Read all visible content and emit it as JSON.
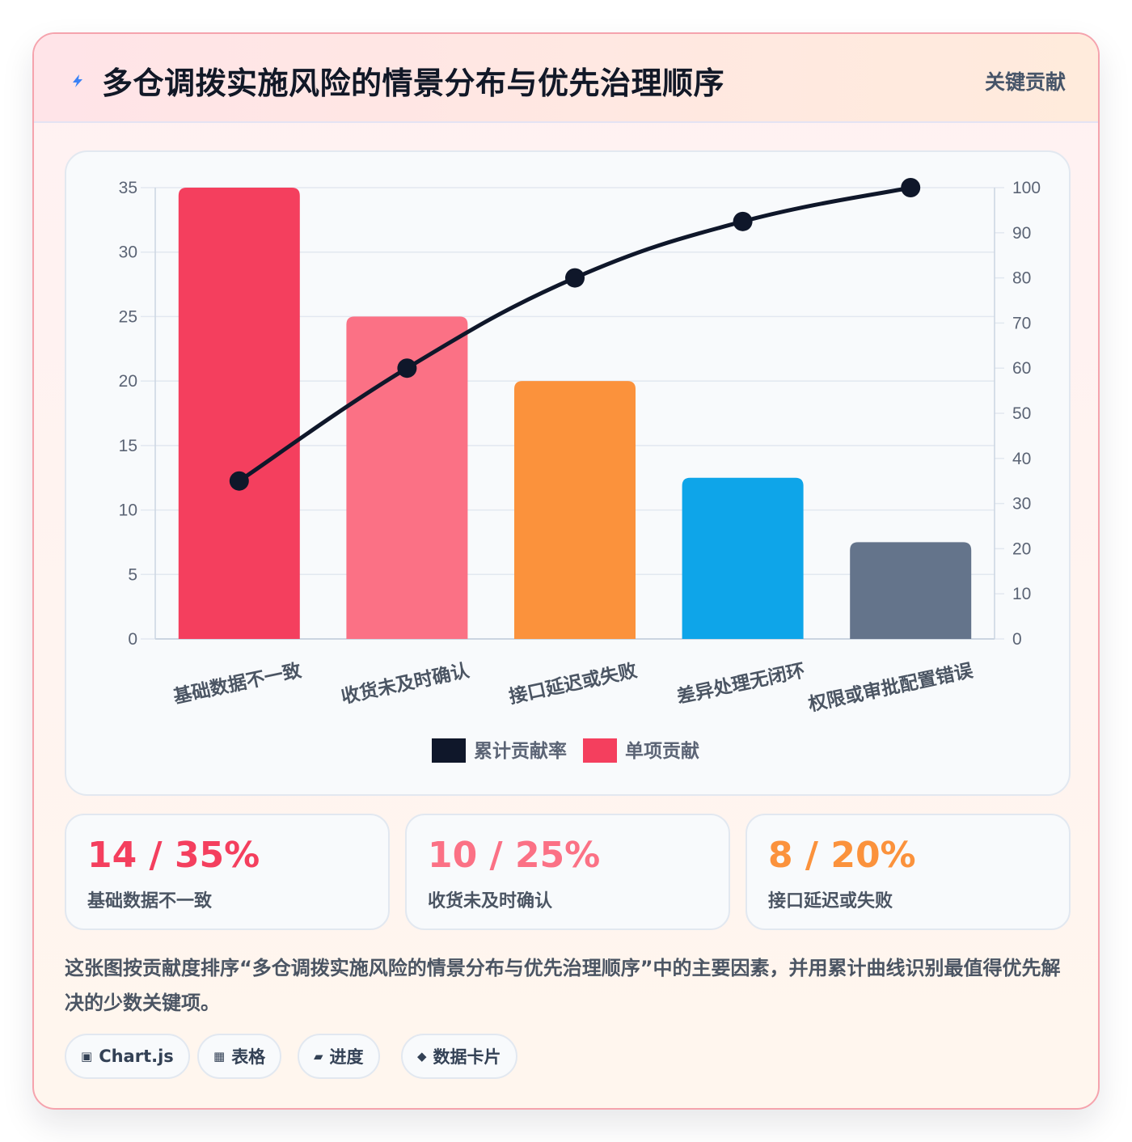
{
  "header": {
    "title": "多仓调拨实施风险的情景分布与优先治理顺序",
    "badge": "关键贡献"
  },
  "colors": {
    "line": "#0f172a",
    "grid": "#e2e8f0",
    "bars": [
      "#f43f5e",
      "#fb7185",
      "#fb923c",
      "#0ea5e9",
      "#64748b"
    ]
  },
  "chart_data": {
    "type": "bar",
    "categories": [
      "基础数据不一致",
      "收货未及时确认",
      "接口延迟或失败",
      "差异处理无闭环",
      "权限或审批配置错误"
    ],
    "series": [
      {
        "name": "单项贡献",
        "type": "bar",
        "axis": "left",
        "values": [
          35,
          25,
          20,
          12.5,
          7.5
        ]
      },
      {
        "name": "累计贡献率",
        "type": "line",
        "axis": "right",
        "values": [
          35,
          60,
          80,
          92.5,
          100
        ]
      }
    ],
    "y_left": {
      "min": 0,
      "max": 35,
      "ticks": [
        0,
        5,
        10,
        15,
        20,
        25,
        30,
        35
      ]
    },
    "y_right": {
      "min": 0,
      "max": 100,
      "ticks": [
        0,
        10,
        20,
        30,
        40,
        50,
        60,
        70,
        80,
        90,
        100
      ]
    },
    "legend": {
      "position": "bottom",
      "order": [
        "累计贡献率",
        "单项贡献"
      ]
    },
    "grid": true
  },
  "stats": [
    {
      "value": "14 / 35%",
      "label": "基础数据不一致",
      "color": "#f43f5e"
    },
    {
      "value": "10 / 25%",
      "label": "收货未及时确认",
      "color": "#fb7185"
    },
    {
      "value": "8 / 20%",
      "label": "接口延迟或失败",
      "color": "#fb923c"
    }
  ],
  "description": "这张图按贡献度排序“多仓调拨实施风险的情景分布与优先治理顺序”中的主要因素，并用累计曲线识别最值得优先解决的少数关键项。",
  "chips": [
    {
      "icon": "▣",
      "icon_name": "chart-icon",
      "label": "Chart.js"
    },
    {
      "icon": "▦",
      "icon_name": "table-icon",
      "label": "表格"
    },
    {
      "icon": "▰",
      "icon_name": "progress-icon",
      "label": "进度"
    },
    {
      "icon": "◆",
      "icon_name": "data-card-icon",
      "label": "数据卡片"
    }
  ]
}
